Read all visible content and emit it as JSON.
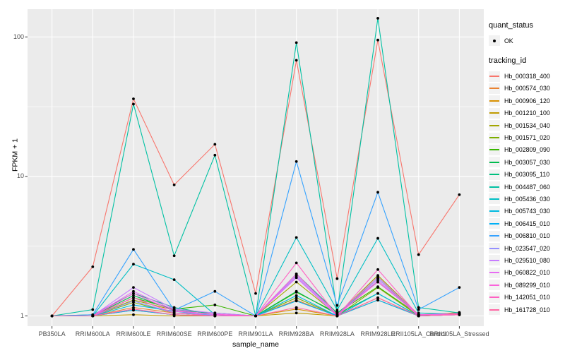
{
  "axes": {
    "xlabel": "sample_name",
    "ylabel": "FPKM + 1",
    "y_tick_labels": [
      "100",
      "10",
      "1"
    ]
  },
  "legend": {
    "quant_status_title": "quant_status",
    "quant_status_items": [
      {
        "label": "OK"
      }
    ],
    "tracking_id_title": "tracking_id"
  },
  "colors": {
    "panel_background": "#EBEBEB",
    "grid": "#FFFFFF",
    "tick_text": "#4D4D4D",
    "tick_mark": "#333333",
    "point": "#000000",
    "legend_key_background": "#F2F2F2"
  },
  "chart_data": {
    "type": "line",
    "title": "",
    "xlabel": "sample_name",
    "ylabel": "FPKM + 1",
    "y_scale": "log10",
    "y_major_ticks": [
      1,
      10,
      100
    ],
    "y_minor_ticks": [
      3.162,
      31.62
    ],
    "ylim": [
      0.85,
      156
    ],
    "grid": true,
    "legend_position": "right",
    "point_marker": "black dot at every sample (quant_status OK)",
    "categories": [
      "PB350LA",
      "RRIM600LA",
      "RRIM600LE",
      "RRIM600SE",
      "RRIM600PE",
      "RRIM901LA",
      "RRIM928BA",
      "RRIM928LA",
      "RRIM928LE",
      "RRII105LA_Control",
      "RRII105LA_Stressed"
    ],
    "series": [
      {
        "name": "Hb_000318_400",
        "color": "#F8766D",
        "values": [
          1,
          2.25,
          36,
          8.7,
          17,
          1.45,
          68,
          1.85,
          95,
          2.75,
          7.4
        ]
      },
      {
        "name": "Hb_000574_030",
        "color": "#EA8331",
        "values": [
          1,
          1,
          1.15,
          1.05,
          1.02,
          1,
          1.3,
          1,
          1.35,
          1,
          1.05
        ]
      },
      {
        "name": "Hb_000906_120",
        "color": "#D89000",
        "values": [
          1,
          1,
          1.1,
          1.02,
          1,
          1,
          1.12,
          1,
          1.9,
          1,
          1.06
        ]
      },
      {
        "name": "Hb_001210_100",
        "color": "#C09B00",
        "values": [
          1,
          1,
          1.02,
          1,
          1,
          1,
          1.05,
          1,
          1.3,
          1,
          1.04
        ]
      },
      {
        "name": "Hb_001534_040",
        "color": "#A3A500",
        "values": [
          1,
          1,
          1.3,
          1.1,
          1.02,
          1,
          1.75,
          1.02,
          1.95,
          1.02,
          1.05
        ]
      },
      {
        "name": "Hb_001571_020",
        "color": "#7CAE00",
        "values": [
          1,
          1,
          1.25,
          1.05,
          1,
          1,
          1.35,
          1,
          1.6,
          1,
          1.02
        ]
      },
      {
        "name": "Hb_002809_090",
        "color": "#39B600",
        "values": [
          1,
          1,
          1.35,
          1.12,
          1.2,
          1,
          1.48,
          1.05,
          1.62,
          1.02,
          1.03
        ]
      },
      {
        "name": "Hb_003057_030",
        "color": "#00BB4E",
        "values": [
          1,
          1,
          1.4,
          1.1,
          1.05,
          1,
          1.5,
          1.03,
          1.45,
          1,
          1.02
        ]
      },
      {
        "name": "Hb_003095_110",
        "color": "#00BF7D",
        "values": [
          1,
          1.02,
          1.45,
          1.15,
          1.02,
          1,
          2.0,
          1.05,
          1.75,
          1.02,
          1.04
        ]
      },
      {
        "name": "Hb_004487_060",
        "color": "#00C1A3",
        "values": [
          1,
          1.11,
          33,
          2.7,
          14.2,
          1,
          91,
          1.07,
          136,
          1.15,
          1.05
        ]
      },
      {
        "name": "Hb_005436_030",
        "color": "#00BFC4",
        "values": [
          1,
          1,
          2.35,
          1.82,
          1.02,
          1,
          3.65,
          1.1,
          3.6,
          1.05,
          1.03
        ]
      },
      {
        "name": "Hb_005743_030",
        "color": "#00BAE0",
        "values": [
          1,
          1,
          1.2,
          1.08,
          1,
          1,
          1.4,
          1,
          1.45,
          1,
          1.02
        ]
      },
      {
        "name": "Hb_006415_010",
        "color": "#00B0F6",
        "values": [
          1,
          1,
          1.1,
          1.02,
          1,
          1,
          1.28,
          1,
          1.3,
          1,
          1.02
        ]
      },
      {
        "name": "Hb_006810_010",
        "color": "#35A2FF",
        "values": [
          1,
          1.02,
          3.0,
          1.1,
          1.5,
          1,
          12.8,
          1.19,
          7.7,
          1.11,
          1.6
        ]
      },
      {
        "name": "Hb_023547_020",
        "color": "#9590FF",
        "values": [
          1,
          1,
          1.28,
          1.05,
          1.02,
          1,
          1.9,
          1,
          1.85,
          1,
          1.02
        ]
      },
      {
        "name": "Hb_029510_080",
        "color": "#C77CFF",
        "values": [
          1,
          1,
          1.6,
          1.12,
          1.05,
          1,
          1.95,
          1.02,
          1.9,
          1.02,
          1.03
        ]
      },
      {
        "name": "Hb_060822_010",
        "color": "#E76BF3",
        "values": [
          1,
          1,
          1.5,
          1.1,
          1.02,
          1,
          1.88,
          1,
          1.8,
          1,
          1.02
        ]
      },
      {
        "name": "Hb_089299_010",
        "color": "#FA62DB",
        "values": [
          1,
          1,
          1.45,
          1.08,
          1.03,
          1,
          2.0,
          1.02,
          1.75,
          1.02,
          1.04
        ]
      },
      {
        "name": "Hb_142051_010",
        "color": "#FF61C3",
        "values": [
          1,
          1,
          1.35,
          1.05,
          1,
          1,
          2.4,
          1,
          2.15,
          1,
          1.03
        ]
      },
      {
        "name": "Hb_161728_010",
        "color": "#FF67A4",
        "values": [
          1,
          1,
          1.12,
          1.02,
          1,
          1,
          1.15,
          1,
          1.35,
          1,
          1.02
        ]
      }
    ]
  }
}
